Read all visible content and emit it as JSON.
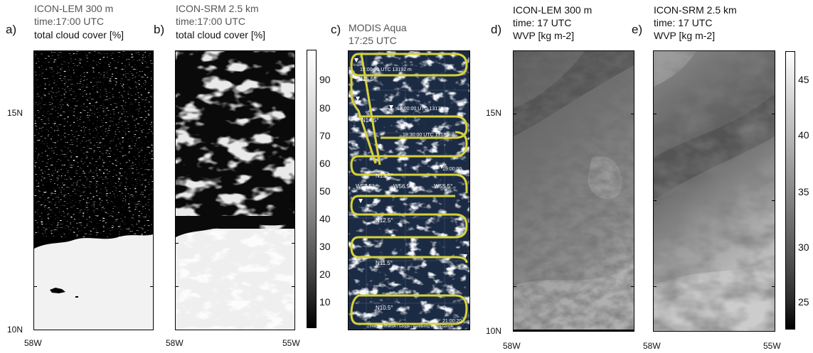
{
  "panels": {
    "a": {
      "letter": "a)",
      "title1": "ICON-LEM 300 m",
      "title2": "time:17:00 UTC",
      "title3": "total cloud cover [%]"
    },
    "b": {
      "letter": "b)",
      "title1": "ICON-SRM 2.5 km",
      "title2": "time:17:00 UTC",
      "title3": "total cloud cover [%]"
    },
    "c": {
      "letter": "c)",
      "title1": "MODIS Aqua",
      "title2": "17:25 UTC"
    },
    "d": {
      "letter": "d)",
      "title1": "ICON-LEM 300 m",
      "title2": "time: 17 UTC",
      "title3": "WVP [kg m-2]"
    },
    "e": {
      "letter": "e)",
      "title1": "ICON-SRM 2.5 km",
      "title2": "time: 17 UTC",
      "title3": "WVP [kg m-2]"
    }
  },
  "axes": {
    "lat_top": "15N",
    "lat_bottom": "10N",
    "lon_left": "58W",
    "lon_right": "55W"
  },
  "colorbars": {
    "cloud": {
      "labels": [
        "90",
        "80",
        "70",
        "60",
        "50",
        "40",
        "30",
        "20",
        "10"
      ]
    },
    "wvp": {
      "labels": [
        "45",
        "40",
        "35",
        "30",
        "25"
      ]
    }
  },
  "modis_labels": {
    "lat": [
      "N15.5°",
      "N14.5°",
      "N13.5°",
      "N12.5°",
      "N11.5°",
      "N10.5°"
    ],
    "lon": [
      "W57.5°",
      "W56.5°",
      "W55.5°"
    ],
    "waypoints": [
      "17:00:00 UTC  13192 m",
      "18:00:00 UTC  13179 m",
      "18:30:00 UTC  13185",
      "19:00:00",
      "21:00:20"
    ],
    "credit": "Imagery ©NASA / Google / Rendering ©2016 Google"
  },
  "colors": {
    "flight_track": "#d6d23a",
    "satellite_bg": "#1c2b44"
  }
}
